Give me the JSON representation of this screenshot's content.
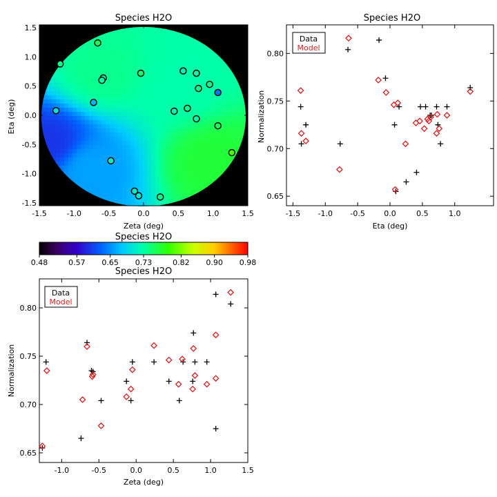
{
  "chart_data": [
    {
      "id": "map",
      "type": "heatmap",
      "title": "Species H2O",
      "xlabel": "Zeta (deg)",
      "ylabel": "Eta (deg)",
      "xlim": [
        -1.5,
        1.5
      ],
      "ylim": [
        -1.55,
        1.55
      ],
      "xticks": [
        -1.5,
        -1.0,
        -0.5,
        0.0,
        0.5,
        1.0,
        1.5
      ],
      "xtick_labels": [
        "-1.5",
        "-1.0",
        "-0.5",
        "0.0",
        "0.5",
        "1.0",
        "1.5"
      ],
      "yticks": [
        -1.5,
        -1.0,
        -0.5,
        0.0,
        0.5,
        1.0,
        1.5
      ],
      "ytick_labels": [
        "-1.5",
        "-1.0",
        "-0.5",
        "0.0",
        "0.5",
        "1.0",
        "1.5"
      ],
      "field_radius_deg": 1.52,
      "background_color": "#000000",
      "model_color_stops": [
        {
          "zeta": -1.35,
          "eta": -0.5,
          "value": 0.6
        },
        {
          "zeta": -0.8,
          "eta": -0.9,
          "value": 0.66
        },
        {
          "zeta": -0.6,
          "eta": 0.7,
          "value": 0.74
        },
        {
          "zeta": 0.5,
          "eta": 0.5,
          "value": 0.73
        },
        {
          "zeta": 1.0,
          "eta": -0.8,
          "value": 0.77
        }
      ],
      "stations": [
        {
          "zeta": -0.66,
          "eta": 1.24,
          "value": 0.76
        },
        {
          "zeta": -1.2,
          "eta": 0.88,
          "value": 0.74
        },
        {
          "zeta": -0.58,
          "eta": 0.64,
          "value": 0.73
        },
        {
          "zeta": -0.6,
          "eta": 0.6,
          "value": 0.73
        },
        {
          "zeta": -0.04,
          "eta": 0.72,
          "value": 0.75
        },
        {
          "zeta": -0.72,
          "eta": 0.22,
          "value": 0.67
        },
        {
          "zeta": -1.26,
          "eta": 0.08,
          "value": 0.7
        },
        {
          "zeta": -0.47,
          "eta": -0.78,
          "value": 0.72
        },
        {
          "zeta": 0.57,
          "eta": 0.76,
          "value": 0.72
        },
        {
          "zeta": 0.76,
          "eta": 0.72,
          "value": 0.73
        },
        {
          "zeta": 0.95,
          "eta": 0.53,
          "value": 0.74
        },
        {
          "zeta": 0.79,
          "eta": 0.46,
          "value": 0.74
        },
        {
          "zeta": 1.07,
          "eta": 0.39,
          "value": 0.64
        },
        {
          "zeta": 0.63,
          "eta": 0.12,
          "value": 0.74
        },
        {
          "zeta": 0.44,
          "eta": 0.07,
          "value": 0.72
        },
        {
          "zeta": 0.76,
          "eta": -0.06,
          "value": 0.73
        },
        {
          "zeta": 1.07,
          "eta": -0.18,
          "value": 0.76
        },
        {
          "zeta": 1.27,
          "eta": -0.64,
          "value": 0.8
        },
        {
          "zeta": -0.13,
          "eta": -1.3,
          "value": 0.71
        },
        {
          "zeta": -0.07,
          "eta": -1.38,
          "value": 0.71
        },
        {
          "zeta": 0.24,
          "eta": -1.4,
          "value": 0.74
        }
      ]
    },
    {
      "id": "colorbar",
      "type": "heatmap",
      "title": "Species H2O",
      "range": [
        0.48,
        0.98
      ],
      "ticks": [
        0.48,
        0.57,
        0.65,
        0.73,
        0.82,
        0.9,
        0.98
      ],
      "tick_labels": [
        "0.48",
        "0.57",
        "0.65",
        "0.73",
        "0.82",
        "0.90",
        "0.98"
      ],
      "colormap": "rainbow"
    },
    {
      "id": "eta_scatter",
      "type": "scatter",
      "title": "Species H2O",
      "xlabel": "Eta (deg)",
      "ylabel": "Normalization",
      "xlim": [
        -1.6,
        1.6
      ],
      "ylim": [
        0.64,
        0.83
      ],
      "xticks": [
        -1.5,
        -1.0,
        -0.5,
        0.0,
        0.5,
        1.0
      ],
      "xtick_labels": [
        "-1.5",
        "-1.0",
        "-0.5",
        "0.0",
        "0.5",
        "1.0"
      ],
      "yticks": [
        0.65,
        0.7,
        0.75,
        0.8
      ],
      "ytick_labels": [
        "0.65",
        "0.70",
        "0.75",
        "0.80"
      ],
      "legend": {
        "location": "top-left",
        "entries": [
          {
            "label": "Data",
            "color": "#000000"
          },
          {
            "label": "Model",
            "color": "#e41a1c"
          }
        ]
      },
      "series": [
        {
          "name": "Data",
          "marker": "plus",
          "color": "#000000",
          "x": [
            -1.38,
            -1.37,
            -1.3,
            -0.77,
            -0.65,
            -0.17,
            -0.07,
            0.07,
            0.09,
            0.14,
            0.25,
            0.41,
            0.47,
            0.55,
            0.62,
            0.64,
            0.72,
            0.74,
            0.78,
            0.88,
            1.24
          ],
          "y": [
            0.744,
            0.705,
            0.725,
            0.705,
            0.804,
            0.814,
            0.774,
            0.725,
            0.655,
            0.744,
            0.665,
            0.675,
            0.744,
            0.744,
            0.735,
            0.735,
            0.744,
            0.725,
            0.705,
            0.744,
            0.764
          ]
        },
        {
          "name": "Model",
          "marker": "diamond",
          "color": "#e41a1c",
          "x": [
            -1.38,
            -1.37,
            -1.3,
            -0.78,
            -0.64,
            -0.18,
            -0.06,
            0.06,
            0.08,
            0.12,
            0.24,
            0.4,
            0.46,
            0.53,
            0.58,
            0.6,
            0.63,
            0.72,
            0.73,
            0.76,
            0.88,
            1.24
          ],
          "y": [
            0.761,
            0.716,
            0.708,
            0.678,
            0.816,
            0.772,
            0.759,
            0.746,
            0.657,
            0.748,
            0.705,
            0.727,
            0.729,
            0.721,
            0.731,
            0.729,
            0.733,
            0.716,
            0.736,
            0.721,
            0.735,
            0.76
          ]
        }
      ]
    },
    {
      "id": "zeta_scatter",
      "type": "scatter",
      "title": "Species H2O",
      "xlabel": "Zeta (deg)",
      "ylabel": "Normalization",
      "xlim": [
        -1.3,
        1.5
      ],
      "ylim": [
        0.64,
        0.83
      ],
      "xticks": [
        -1.0,
        -0.5,
        0.0,
        0.5,
        1.0,
        1.5
      ],
      "xtick_labels": [
        "-1.0",
        "-0.5",
        "0.0",
        "0.5",
        "1.0",
        "1.5"
      ],
      "yticks": [
        0.65,
        0.7,
        0.75,
        0.8
      ],
      "ytick_labels": [
        "0.65",
        "0.70",
        "0.75",
        "0.80"
      ],
      "legend": {
        "location": "top-left",
        "entries": [
          {
            "label": "Data",
            "color": "#000000"
          },
          {
            "label": "Model",
            "color": "#e41a1c"
          }
        ]
      },
      "series": [
        {
          "name": "Data",
          "marker": "plus",
          "color": "#000000",
          "x": [
            -1.26,
            -1.21,
            -0.74,
            -0.66,
            -0.6,
            -0.58,
            -0.47,
            -0.13,
            -0.07,
            -0.05,
            0.24,
            0.44,
            0.58,
            0.63,
            0.76,
            0.77,
            0.79,
            0.95,
            1.07,
            1.07,
            1.27
          ],
          "y": [
            0.655,
            0.744,
            0.665,
            0.764,
            0.735,
            0.734,
            0.704,
            0.724,
            0.704,
            0.744,
            0.744,
            0.724,
            0.704,
            0.744,
            0.724,
            0.774,
            0.744,
            0.744,
            0.814,
            0.675,
            0.804
          ]
        },
        {
          "name": "Model",
          "marker": "diamond",
          "color": "#e41a1c",
          "x": [
            -1.26,
            -1.2,
            -0.72,
            -0.66,
            -0.59,
            -0.58,
            -0.47,
            -0.13,
            -0.07,
            -0.05,
            0.24,
            0.44,
            0.57,
            0.62,
            0.76,
            0.77,
            0.79,
            0.95,
            1.07,
            1.07,
            1.27
          ],
          "y": [
            0.657,
            0.735,
            0.705,
            0.76,
            0.729,
            0.731,
            0.678,
            0.708,
            0.716,
            0.736,
            0.761,
            0.746,
            0.721,
            0.747,
            0.716,
            0.758,
            0.73,
            0.721,
            0.772,
            0.727,
            0.816
          ]
        }
      ]
    }
  ]
}
